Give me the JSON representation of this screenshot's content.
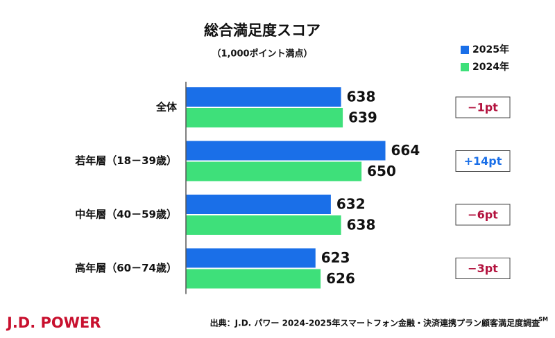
{
  "chart_data": {
    "type": "hbar",
    "title": "総合満足度スコア",
    "subtitle": "（1,000ポイント満点）",
    "categories": [
      "全体",
      "若年層（18－39歳）",
      "中年層（40－59歳）",
      "高年層（60－74歳）"
    ],
    "series": [
      {
        "name": "2025年",
        "color": "#1a6fe8",
        "values": [
          638,
          664,
          632,
          623
        ]
      },
      {
        "name": "2024年",
        "color": "#3ee07a",
        "values": [
          639,
          650,
          638,
          626
        ]
      }
    ],
    "xlim": [
      547,
      700
    ],
    "differences": {
      "values": [
        -1,
        14,
        -6,
        -3
      ],
      "value_labels": [
        "−1pt",
        "+14pt",
        "−6pt",
        "−3pt"
      ],
      "positive_color": "#1a6fe8",
      "negative_color": "#b3123e"
    },
    "source": "出典：J.D. パワー 2024-2025年スマートフォン金融・決済連携プラン顧客満足度調査",
    "source_mark": "SM",
    "logo": "J.D. POWER"
  }
}
